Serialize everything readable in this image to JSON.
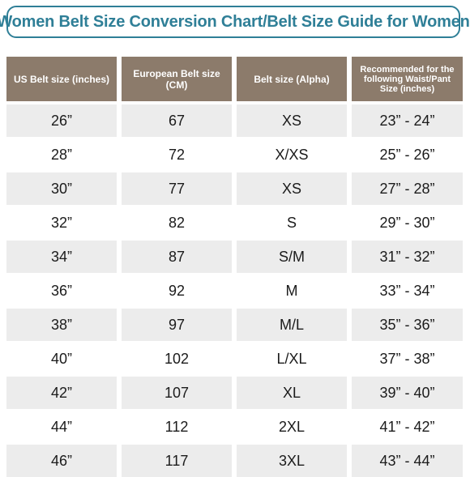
{
  "title": "Women Belt Size Conversion Chart/Belt Size Guide for Women",
  "headers": [
    "US Belt size (inches)",
    "European Belt size (CM)",
    "Belt size (Alpha)",
    "Recommended for the following Waist/Pant Size (inches)"
  ],
  "rows": [
    [
      "26”",
      "67",
      "XS",
      "23” - 24”"
    ],
    [
      "28”",
      "72",
      "X/XS",
      "25” - 26”"
    ],
    [
      "30”",
      "77",
      "XS",
      "27” - 28”"
    ],
    [
      "32”",
      "82",
      "S",
      "29” - 30”"
    ],
    [
      "34”",
      "87",
      "S/M",
      "31” - 32”"
    ],
    [
      "36”",
      "92",
      "M",
      "33” - 34”"
    ],
    [
      "38”",
      "97",
      "M/L",
      "35” - 36”"
    ],
    [
      "40”",
      "102",
      "L/XL",
      "37” - 38”"
    ],
    [
      "42”",
      "107",
      "XL",
      "39” - 40”"
    ],
    [
      "44”",
      "112",
      "2XL",
      "41” - 42”"
    ],
    [
      "46”",
      "117",
      "3XL",
      "43” - 44”"
    ]
  ],
  "colors": {
    "title_accent": "#2f7f97",
    "header_bg": "#8c7b6b",
    "row_shade": "#ececec"
  }
}
